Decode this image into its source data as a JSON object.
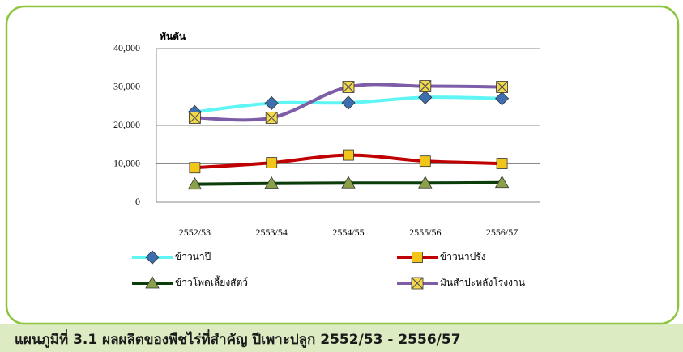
{
  "chart_data": {
    "type": "line",
    "y_axis_title": "พันตัน",
    "caption": "แผนภูมิที่ 3.1 ผลผลิตของพืชไร่ที่สำคัญ ปีเพาะปลูก 2552/53 - 2556/57",
    "categories": [
      "2552/53",
      "2553/54",
      "2554/55",
      "2555/56",
      "2556/57"
    ],
    "ylim": [
      0,
      40000
    ],
    "yticks": [
      0,
      {
        "value": 10000,
        "label": "10,000"
      },
      {
        "value": 20000,
        "label": "20,000"
      },
      {
        "value": 30000,
        "label": "30,000"
      },
      {
        "value": 40000,
        "label": "40,000"
      }
    ],
    "grid": true,
    "legend": "bottom",
    "series": [
      {
        "name": "ข้าวนาปี",
        "color": "#5ff5f5",
        "marker": "diamond",
        "marker_color": "#3d6fb0",
        "values": [
          23500,
          25800,
          25900,
          27300,
          27000
        ]
      },
      {
        "name": "ข้าวนาปรัง",
        "color": "#c00000",
        "marker": "square",
        "marker_color": "#f2c618",
        "values": [
          9000,
          10300,
          12300,
          10700,
          10100
        ]
      },
      {
        "name": "ข้าวโพดเลี้ยงสัตว์",
        "color": "#0b3d0b",
        "marker": "triangle",
        "marker_color": "#8aa14a",
        "values": [
          4700,
          4900,
          5000,
          5000,
          5100
        ]
      },
      {
        "name": "มันสำปะหลังโรงงาน",
        "color": "#7d5ca8",
        "marker": "xsquare",
        "marker_color": "#f2d84a",
        "values": [
          22000,
          22000,
          30000,
          30200,
          30000
        ]
      }
    ]
  }
}
